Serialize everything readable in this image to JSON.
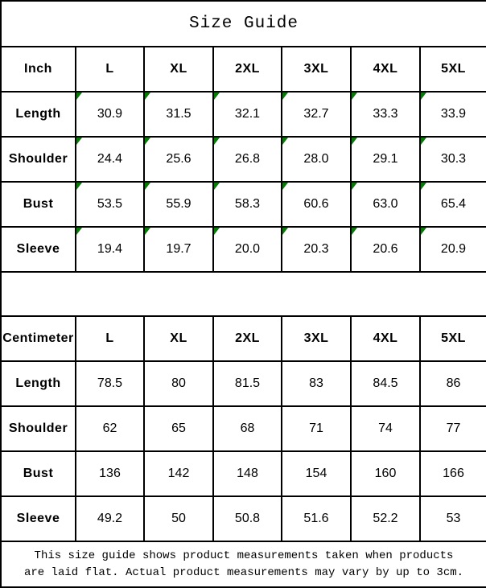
{
  "title": "Size Guide",
  "colors": {
    "marker_green": "#008000",
    "border": "#000000",
    "background": "#ffffff",
    "text": "#000000"
  },
  "chart_data": [
    {
      "type": "table",
      "title": "Size Guide",
      "unit": "Inch",
      "columns": [
        "Inch",
        "L",
        "XL",
        "2XL",
        "3XL",
        "4XL",
        "5XL"
      ],
      "corner_markers": true,
      "rows": [
        {
          "label": "Length",
          "values": [
            "30.9",
            "31.5",
            "32.1",
            "32.7",
            "33.3",
            "33.9"
          ]
        },
        {
          "label": "Shoulder",
          "values": [
            "24.4",
            "25.6",
            "26.8",
            "28.0",
            "29.1",
            "30.3"
          ]
        },
        {
          "label": "Bust",
          "values": [
            "53.5",
            "55.9",
            "58.3",
            "60.6",
            "63.0",
            "65.4"
          ]
        },
        {
          "label": "Sleeve",
          "values": [
            "19.4",
            "19.7",
            "20.0",
            "20.3",
            "20.6",
            "20.9"
          ]
        }
      ]
    },
    {
      "type": "table",
      "title": "Size Guide",
      "unit": "Centimeter",
      "columns": [
        "Centimeter",
        "L",
        "XL",
        "2XL",
        "3XL",
        "4XL",
        "5XL"
      ],
      "corner_markers": false,
      "rows": [
        {
          "label": "Length",
          "values": [
            "78.5",
            "80",
            "81.5",
            "83",
            "84.5",
            "86"
          ]
        },
        {
          "label": "Shoulder",
          "values": [
            "62",
            "65",
            "68",
            "71",
            "74",
            "77"
          ]
        },
        {
          "label": "Bust",
          "values": [
            "136",
            "142",
            "148",
            "154",
            "160",
            "166"
          ]
        },
        {
          "label": "Sleeve",
          "values": [
            "49.2",
            "50",
            "50.8",
            "51.6",
            "52.2",
            "53"
          ]
        }
      ]
    }
  ],
  "footer": {
    "lines": [
      "This size guide shows product measurements taken when products",
      "are laid flat. Actual product measurements may vary by up to 3cm."
    ]
  }
}
